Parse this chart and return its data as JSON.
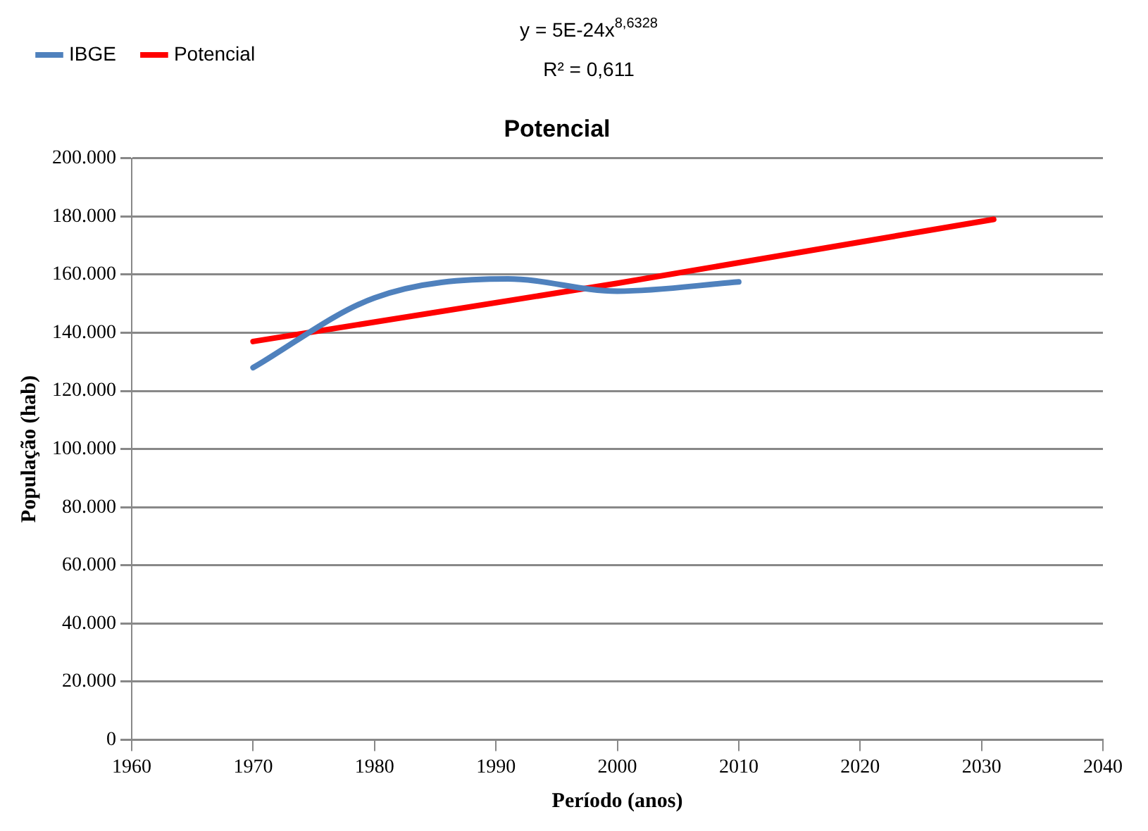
{
  "chart_data": {
    "type": "line",
    "title": "Potencial",
    "xlabel": "Período (anos)",
    "ylabel": "População (hab)",
    "annotations": [
      "y = 5E-24x$^{8,6328}$",
      "R² = 0,611"
    ],
    "x": [
      1970,
      1980,
      1991,
      2000,
      2010
    ],
    "series": [
      {
        "name": "IBGE",
        "color": "#4f81bd",
        "values": [
          128000,
          152000,
          158500,
          154300,
          157500
        ]
      },
      {
        "name": "Potencial",
        "color": "#ff0000",
        "x": [
          1970,
          2000,
          2031
        ],
        "values": [
          137000,
          157000,
          179000
        ]
      }
    ],
    "xlim": [
      1960,
      2040
    ],
    "xticks": [
      1960,
      1970,
      1980,
      1990,
      2000,
      2010,
      2020,
      2030,
      2040
    ],
    "ylim": [
      0,
      200000
    ],
    "yticks": [
      0,
      {
        "value": 20000,
        "label": "20.000"
      },
      {
        "value": 40000,
        "label": "40.000"
      },
      {
        "value": 60000,
        "label": "60.000"
      },
      {
        "value": 80000,
        "label": "80.000"
      },
      {
        "value": 100000,
        "label": "100.000"
      },
      {
        "value": 120000,
        "label": "120.000"
      },
      {
        "value": 140000,
        "label": "140.000"
      },
      {
        "value": 160000,
        "label": "160.000"
      },
      {
        "value": 180000,
        "label": "180.000"
      },
      {
        "value": 200000,
        "label": "200.000"
      }
    ],
    "grid": "y",
    "legend": "top left",
    "marker": "none",
    "line_style": "solid"
  }
}
